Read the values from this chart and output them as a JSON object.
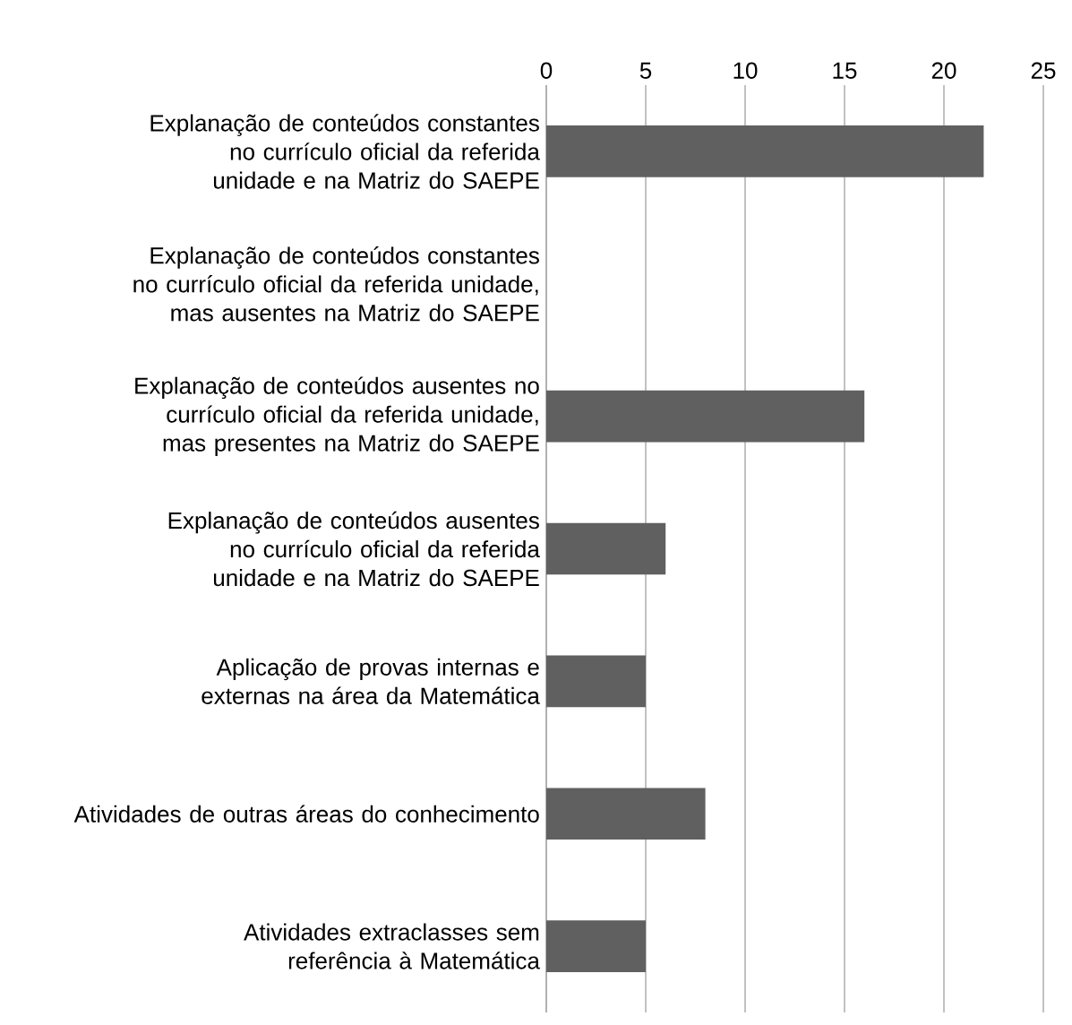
{
  "chart_data": {
    "type": "bar",
    "orientation": "horizontal",
    "categories": [
      "Explanação de conteúdos constantes no currículo oficial da referida unidade e na Matriz do SAEPE",
      "Explanação de conteúdos constantes no currículo oficial da referida unidade, mas ausentes na Matriz do SAEPE",
      "Explanação de conteúdos ausentes no currículo oficial da referida unidade, mas presentes na Matriz do SAEPE",
      "Explanação de conteúdos ausentes no currículo oficial da referida unidade e na Matriz do SAEPE",
      "Aplicação de provas internas e externas na área da Matemática",
      "Atividades de outras áreas do conhecimento",
      "Atividades extraclasses sem referência à Matemática"
    ],
    "values": [
      22,
      0,
      16,
      6,
      5,
      8,
      5
    ],
    "color": "#606060",
    "xlim": [
      0,
      25
    ],
    "xticks": [
      0,
      5,
      10,
      15,
      20,
      25
    ],
    "grid": "x"
  }
}
